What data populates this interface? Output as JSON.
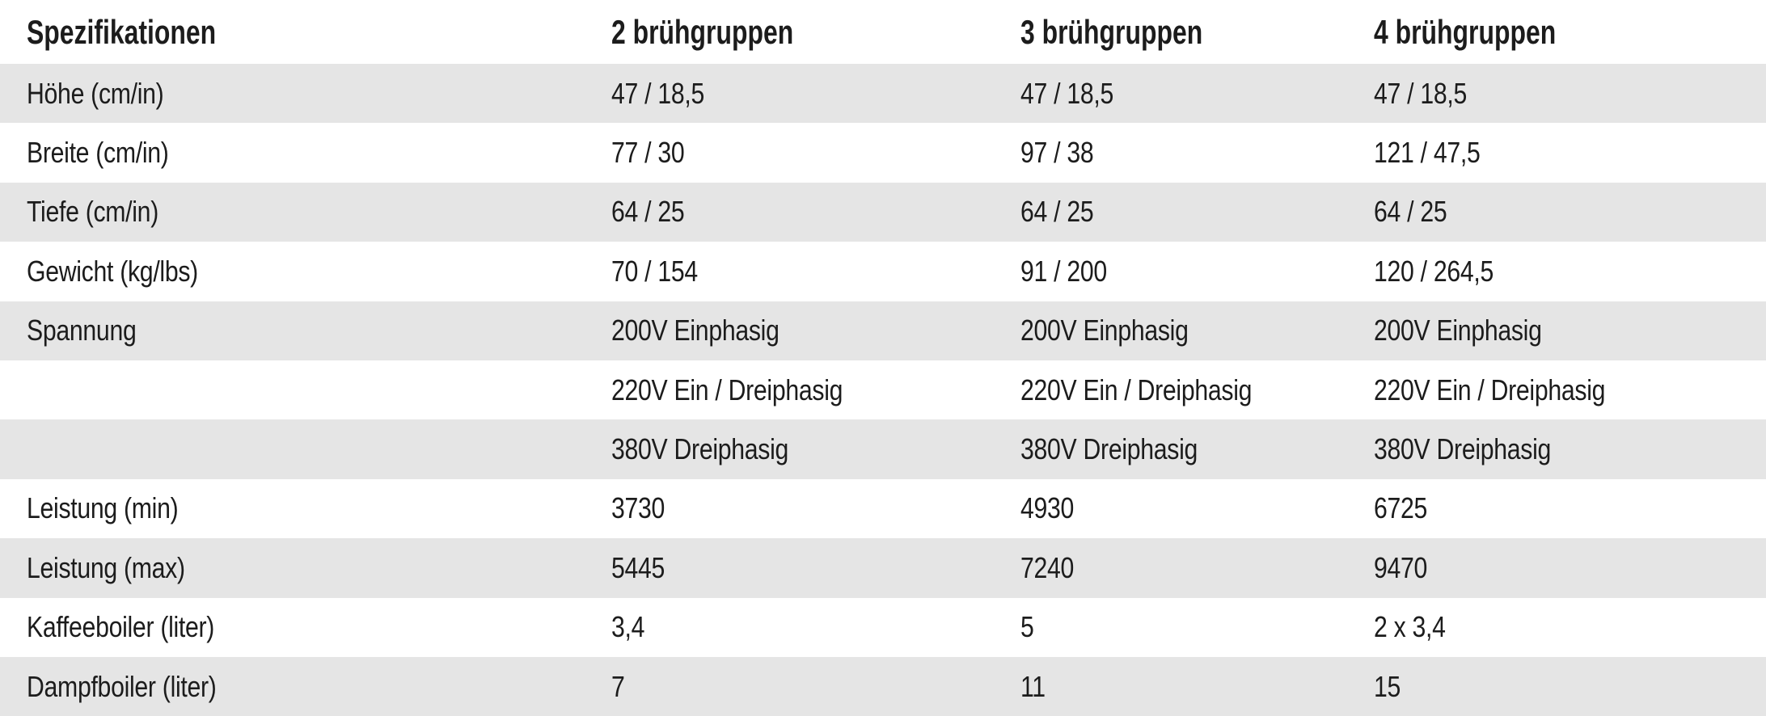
{
  "table": {
    "title": "Spezifikationen",
    "columns": [
      "Spezifikationen",
      "2 brühgruppen",
      "3 brühgruppen",
      "4 brühgruppen"
    ],
    "rows": [
      {
        "label": "Höhe (cm/in)",
        "values": [
          "47 / 18,5",
          "47 / 18,5",
          "47 / 18,5"
        ]
      },
      {
        "label": "Breite (cm/in)",
        "values": [
          "77 / 30",
          "97 / 38",
          "121 / 47,5"
        ]
      },
      {
        "label": "Tiefe (cm/in)",
        "values": [
          "64 / 25",
          "64 / 25",
          "64 / 25"
        ]
      },
      {
        "label": "Gewicht (kg/lbs)",
        "values": [
          "70 / 154",
          "91 / 200",
          "120 / 264,5"
        ]
      },
      {
        "label": "Spannung",
        "values": [
          "200V Einphasig",
          "200V Einphasig",
          "200V Einphasig"
        ]
      },
      {
        "label": "",
        "values": [
          "220V Ein / Dreiphasig",
          "220V Ein / Dreiphasig",
          "220V Ein / Dreiphasig"
        ]
      },
      {
        "label": "",
        "values": [
          "380V Dreiphasig",
          "380V Dreiphasig",
          "380V Dreiphasig"
        ]
      },
      {
        "label": "Leistung (min)",
        "values": [
          "3730",
          "4930",
          "6725"
        ]
      },
      {
        "label": "Leistung (max)",
        "values": [
          "5445",
          "7240",
          "9470"
        ]
      },
      {
        "label": "Kaffeeboiler (liter)",
        "values": [
          "3,4",
          "5",
          "2 x 3,4"
        ]
      },
      {
        "label": "Dampfboiler (liter)",
        "values": [
          "7",
          "11",
          "15"
        ]
      }
    ]
  },
  "colors": {
    "row_shaded": "#e5e5e5",
    "row_plain": "#ffffff",
    "text": "#1c1c1c"
  }
}
